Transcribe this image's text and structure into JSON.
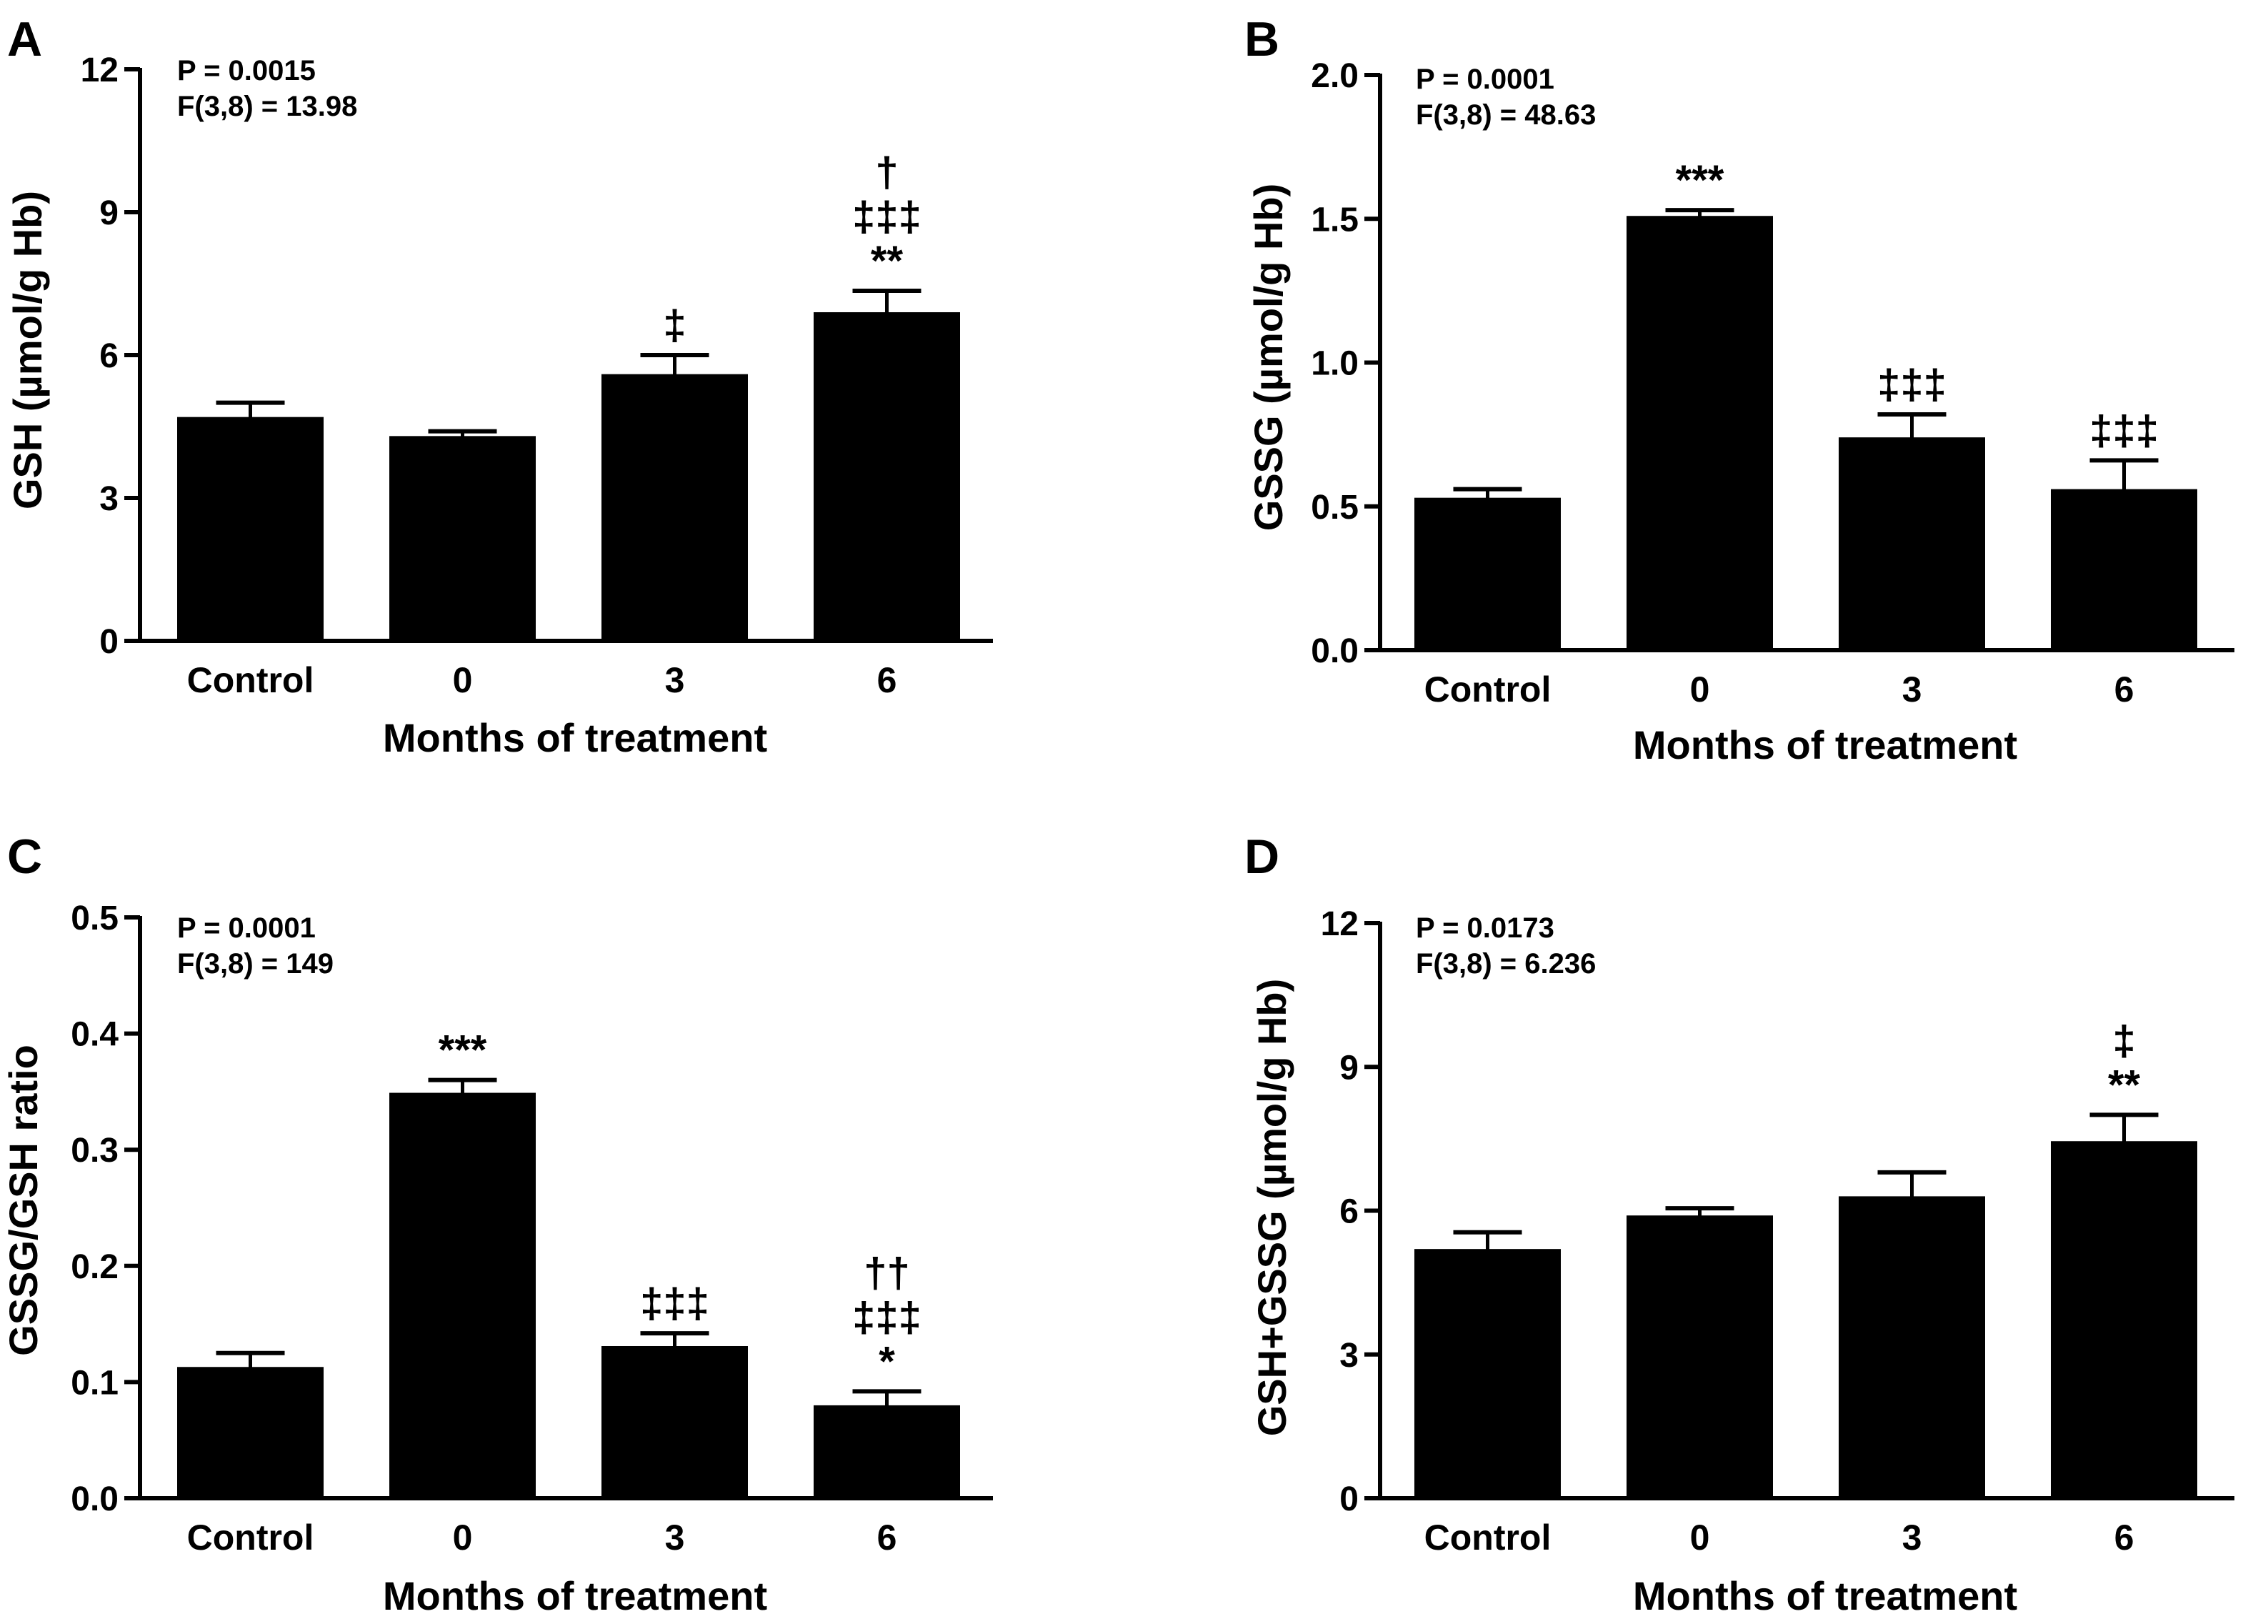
{
  "figure": {
    "panels": [
      {
        "letter": "A",
        "stat_p": "P = 0.0015",
        "stat_f": "F(3,8) = 13.98"
      },
      {
        "letter": "B",
        "stat_p": "P = 0.0001",
        "stat_f": "F(3,8) = 48.63"
      },
      {
        "letter": "C",
        "stat_p": "P = 0.0001",
        "stat_f": "F(3,8) = 149"
      },
      {
        "letter": "D",
        "stat_p": "P = 0.0173",
        "stat_f": "F(3,8) = 6.236"
      }
    ]
  },
  "chart_data": [
    {
      "type": "bar",
      "title": "",
      "xlabel": "Months of treatment",
      "ylabel": "GSH (µmol/g Hb)",
      "categories": [
        "Control",
        "0",
        "3",
        "6"
      ],
      "values": [
        4.7,
        4.3,
        5.6,
        6.9
      ],
      "errors": [
        0.3,
        0.1,
        0.4,
        0.45
      ],
      "significance": [
        [],
        [],
        [
          "‡"
        ],
        [
          "†",
          "‡‡‡",
          "**"
        ]
      ],
      "ylim": [
        0,
        12
      ],
      "yticks": [
        "0",
        "3",
        "6",
        "9",
        "12"
      ],
      "ytick_values": [
        0,
        3,
        6,
        9,
        12
      ]
    },
    {
      "type": "bar",
      "title": "",
      "xlabel": "Months of treatment",
      "ylabel": "GSSG (µmol/g Hb)",
      "categories": [
        "Control",
        "0",
        "3",
        "6"
      ],
      "values": [
        0.53,
        1.51,
        0.74,
        0.56
      ],
      "errors": [
        0.03,
        0.02,
        0.08,
        0.1
      ],
      "significance": [
        [],
        [
          "***"
        ],
        [
          "‡‡‡"
        ],
        [
          "‡‡‡"
        ]
      ],
      "ylim": [
        0,
        2.0
      ],
      "yticks": [
        "0.0",
        "0.5",
        "1.0",
        "1.5",
        "2.0"
      ],
      "ytick_values": [
        0,
        0.5,
        1.0,
        1.5,
        2.0
      ]
    },
    {
      "type": "bar",
      "title": "",
      "xlabel": "Months of treatment",
      "ylabel": "GSSG/GSH ratio",
      "categories": [
        "Control",
        "0",
        "3",
        "6"
      ],
      "values": [
        0.113,
        0.349,
        0.131,
        0.08
      ],
      "errors": [
        0.012,
        0.011,
        0.011,
        0.012
      ],
      "significance": [
        [],
        [
          "***"
        ],
        [
          "‡‡‡"
        ],
        [
          "††",
          "‡‡‡",
          "*"
        ]
      ],
      "ylim": [
        0,
        0.5
      ],
      "yticks": [
        "0.0",
        "0.1",
        "0.2",
        "0.3",
        "0.4",
        "0.5"
      ],
      "ytick_values": [
        0,
        0.1,
        0.2,
        0.3,
        0.4,
        0.5
      ]
    },
    {
      "type": "bar",
      "title": "",
      "xlabel": "Months of treatment",
      "ylabel": "GSH+GSSG (µmol/g Hb)",
      "categories": [
        "Control",
        "0",
        "3",
        "6"
      ],
      "values": [
        5.2,
        5.9,
        6.3,
        7.45
      ],
      "errors": [
        0.35,
        0.15,
        0.5,
        0.55
      ],
      "significance": [
        [],
        [],
        [],
        [
          "‡",
          "**"
        ]
      ],
      "ylim": [
        0,
        12
      ],
      "yticks": [
        "0",
        "3",
        "6",
        "9",
        "12"
      ],
      "ytick_values": [
        0,
        3,
        6,
        9,
        12
      ]
    }
  ]
}
